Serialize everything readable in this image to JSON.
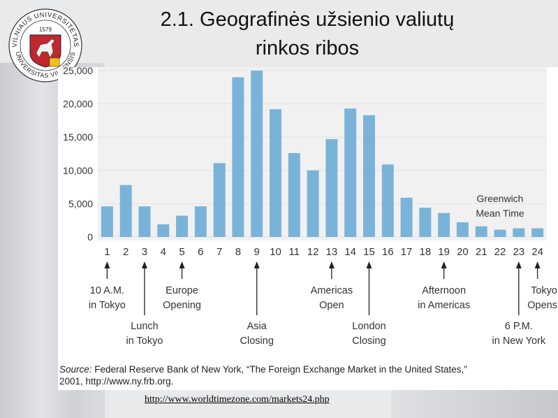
{
  "slide": {
    "title_line1": "2.1. Geografinės užsienio valiutų",
    "title_line2": "rinkos ribos",
    "logo": {
      "text_top": "VILNIAUS UNIVERSITETAS",
      "text_bottom": "UNIVERSITAS VILNENSIS",
      "year": "1579"
    },
    "source_label": "Source:",
    "source_text": " Federal Reserve Bank of New York, “The Foreign Exchange Market in the United States,”",
    "source_line2": "2001, http://www.ny.frb.org.",
    "url": "http://www.worldtimezone.com/markets24.php"
  },
  "colors": {
    "bar": "#7ab3d8",
    "grid": "#e3e3e3",
    "plot_bg": "#f1f1f1",
    "text": "#333333"
  },
  "chart_data": {
    "type": "bar",
    "categories": [
      "1",
      "2",
      "3",
      "4",
      "5",
      "6",
      "7",
      "8",
      "9",
      "10",
      "11",
      "12",
      "13",
      "14",
      "15",
      "16",
      "17",
      "18",
      "19",
      "20",
      "21",
      "22",
      "23",
      "24"
    ],
    "values": [
      4600,
      7800,
      4600,
      1900,
      3200,
      4600,
      11100,
      24000,
      25000,
      19200,
      12600,
      10000,
      14700,
      19300,
      18300,
      10900,
      5900,
      4400,
      3600,
      2200,
      1600,
      1100,
      1300,
      1300
    ],
    "ylim": [
      0,
      25000
    ],
    "yticks": [
      0,
      5000,
      10000,
      15000,
      20000,
      25000
    ],
    "ytick_labels": [
      "0",
      "5,000",
      "10,000",
      "15,000",
      "20,000",
      "25,000"
    ],
    "grid": true,
    "gmt_label": [
      "Greenwich",
      "Mean Time"
    ],
    "annotations": [
      {
        "hour": 1,
        "lines": [
          "10 A.M.",
          "in Tokyo"
        ],
        "row": "upper"
      },
      {
        "hour": 3,
        "lines": [
          "Lunch",
          "in Tokyo"
        ],
        "row": "lower"
      },
      {
        "hour": 5,
        "lines": [
          "Europe",
          "Opening"
        ],
        "row": "upper"
      },
      {
        "hour": 9,
        "lines": [
          "Asia",
          "Closing"
        ],
        "row": "lower"
      },
      {
        "hour": 13,
        "lines": [
          "Americas",
          "Open"
        ],
        "row": "upper"
      },
      {
        "hour": 15,
        "lines": [
          "London",
          "Closing"
        ],
        "row": "lower"
      },
      {
        "hour": 19,
        "lines": [
          "Afternoon",
          "in Americas"
        ],
        "row": "upper"
      },
      {
        "hour": 23,
        "lines": [
          "6 P.M.",
          "in New York"
        ],
        "row": "lower"
      },
      {
        "hour": 24,
        "lines": [
          "Tokyo",
          "Opens"
        ],
        "row": "upper"
      }
    ]
  }
}
